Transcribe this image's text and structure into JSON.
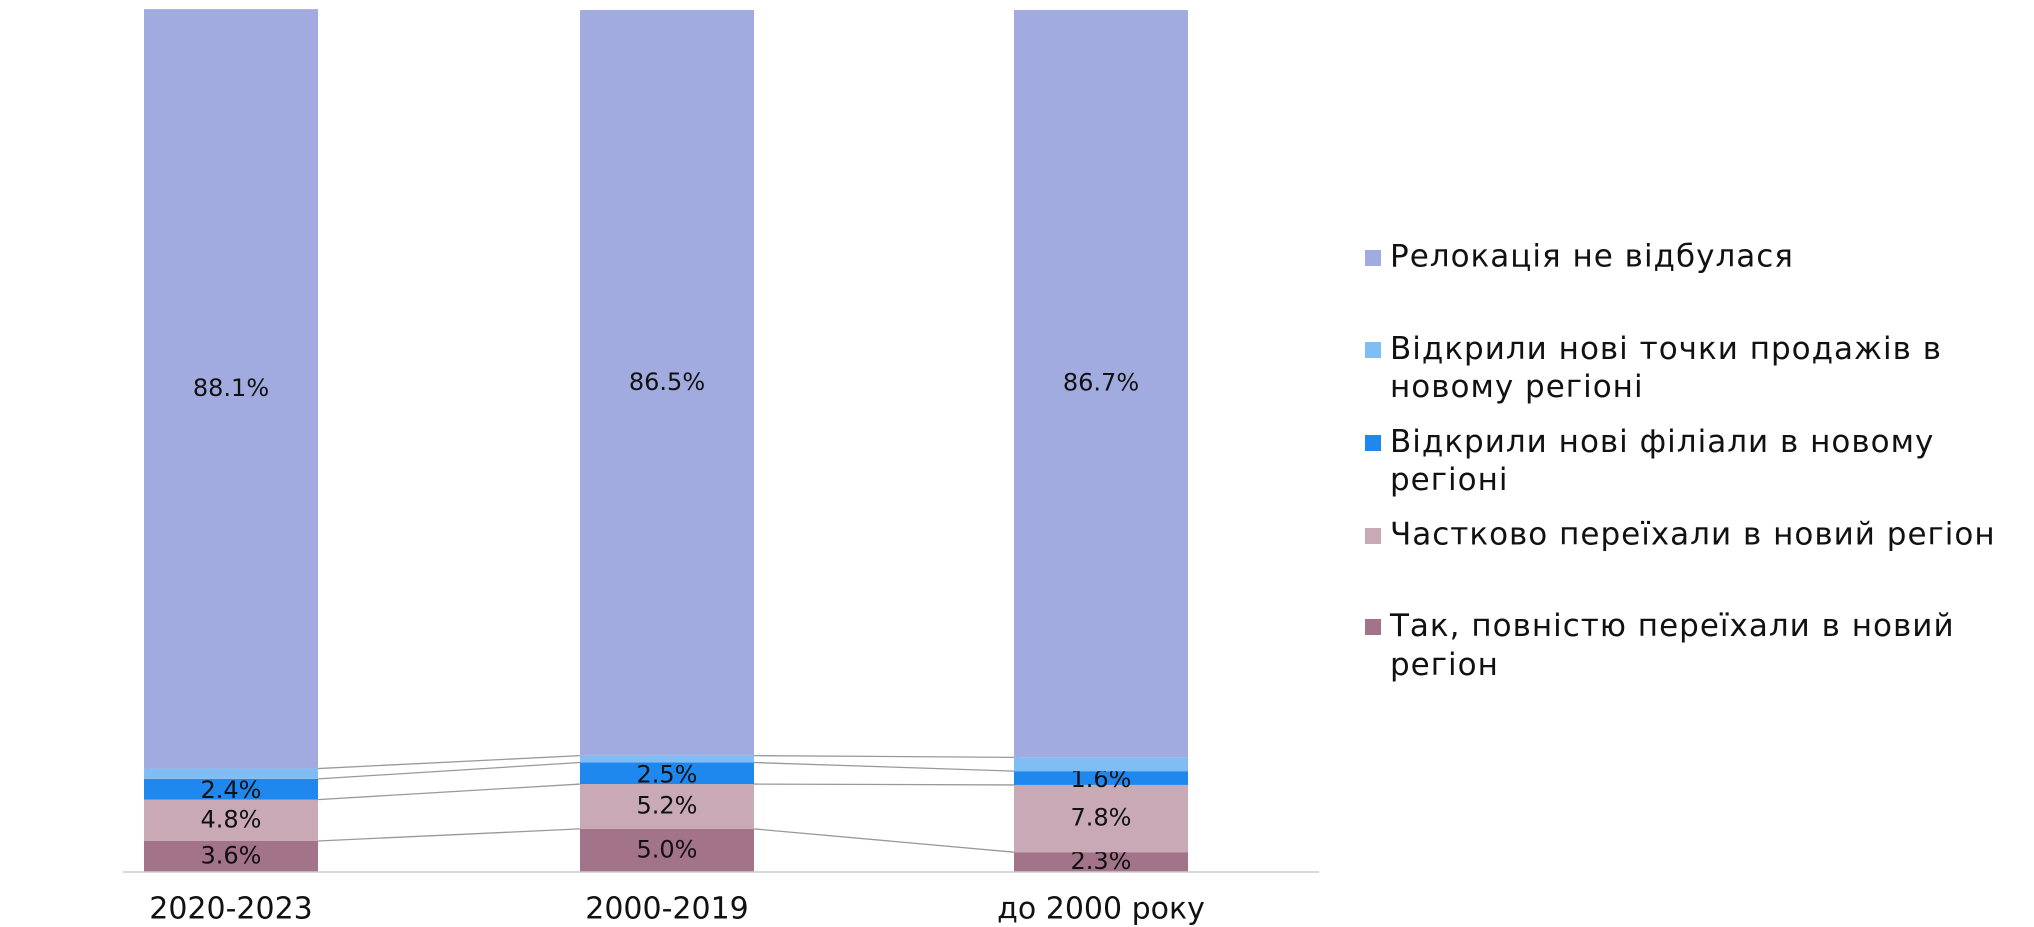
{
  "chart_data": {
    "type": "stacked_bar",
    "categories": [
      "2020-2023",
      "2000-2019",
      "до 2000 року"
    ],
    "ylim": [
      0,
      100
    ],
    "series": [
      {
        "name": "Так, повністю переїхали в новий регіон",
        "color": "#a27389",
        "values": [
          3.6,
          5.0,
          2.3
        ],
        "value_labels": [
          "3.6%",
          "5.0%",
          "2.3%"
        ]
      },
      {
        "name": "Частково переїхали в новий регіон",
        "color": "#c8a9b5",
        "values": [
          4.8,
          5.2,
          7.8
        ],
        "value_labels": [
          "4.8%",
          "5.2%",
          "7.8%"
        ]
      },
      {
        "name": "Відкрили нові філіали в новому регіоні",
        "color": "#1f88ef",
        "values": [
          2.4,
          2.5,
          1.6
        ],
        "value_labels": [
          "2.4%",
          "2.5%",
          "1.6%"
        ]
      },
      {
        "name": "Відкрили нові точки продажів в новому регіоні",
        "color": "#80bdf4",
        "values": [
          1.2,
          0.8,
          1.6
        ],
        "value_labels": [
          "1.2%",
          "0.8%",
          "1.6%"
        ]
      },
      {
        "name": "Релокація не відбулася",
        "color": "#a1abdf",
        "values": [
          88.1,
          86.5,
          86.7
        ],
        "value_labels": [
          "88.1%",
          "86.5%",
          "86.7%"
        ]
      }
    ],
    "legend": "right"
  }
}
